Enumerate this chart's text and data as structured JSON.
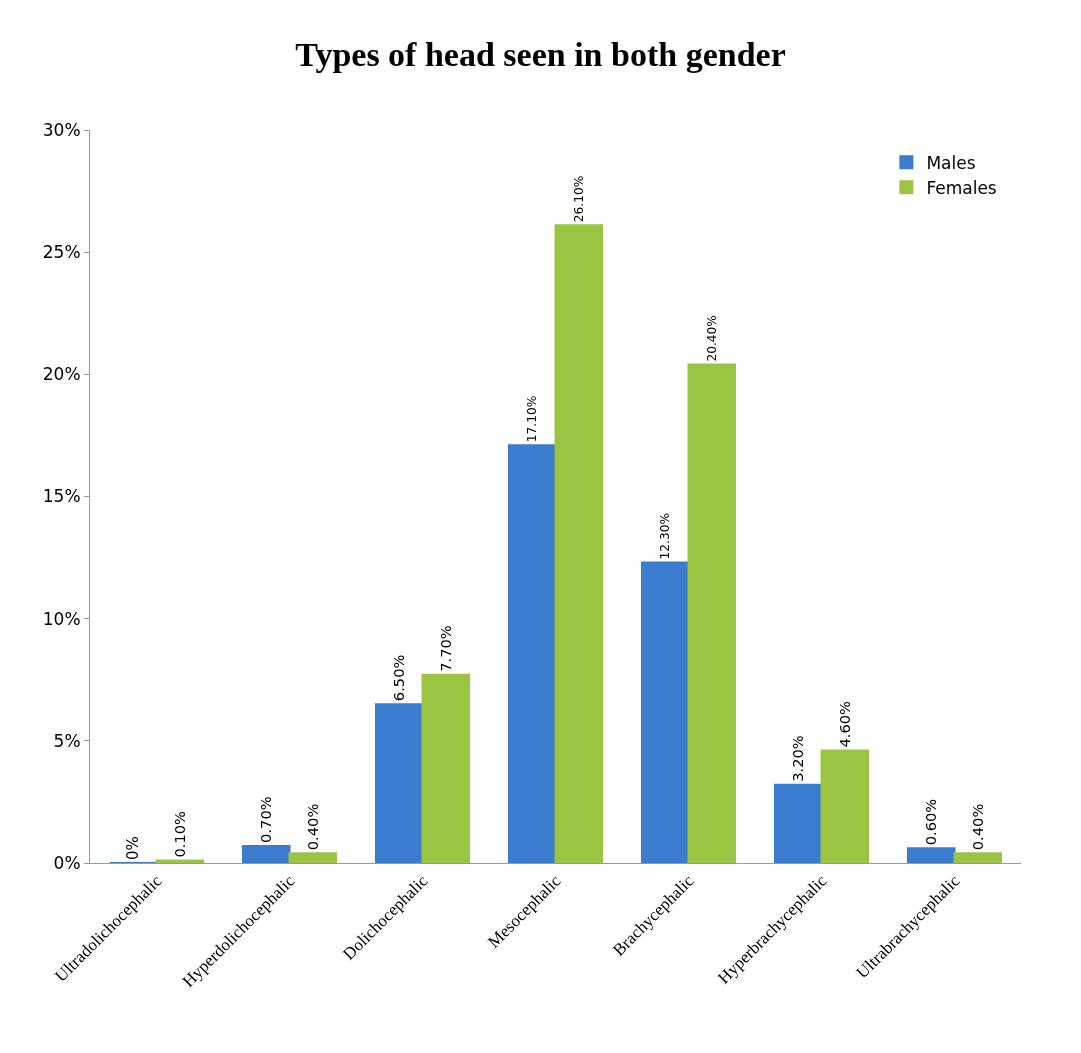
{
  "chart_data": {
    "type": "bar",
    "title": "Types of head seen in both gender",
    "categories": [
      "Ultradolichocephalic",
      "Hyperdolichocephalic",
      "Dolichocephalic",
      "Mesocephalic",
      "Brachycephalic",
      "Hyperbrachycephalic",
      "Ultrabrachycephalic"
    ],
    "series": [
      {
        "name": "Males",
        "color": "#3a7dd0",
        "values": [
          0,
          0.7,
          6.5,
          17.1,
          12.3,
          3.2,
          0.6
        ],
        "value_labels": [
          "0%",
          "0.70%",
          "6.50%",
          "17.10%",
          "12.30%",
          "3.20%",
          "0.60%"
        ]
      },
      {
        "name": "Females",
        "color": "#9bc443",
        "values": [
          0.1,
          0.4,
          7.7,
          26.1,
          20.4,
          4.6,
          0.4
        ],
        "value_labels": [
          "0.10%",
          "0.40%",
          "7.70%",
          "26.10%",
          "20.40%",
          "4.60%",
          "0.40%"
        ]
      }
    ],
    "ylim": [
      0,
      30
    ],
    "yticks": [
      {
        "value": 0,
        "label": "0%"
      },
      {
        "value": 5,
        "label": "5%"
      },
      {
        "value": 10,
        "label": "10%"
      },
      {
        "value": 15,
        "label": "15%"
      },
      {
        "value": 20,
        "label": "20%"
      },
      {
        "value": 25,
        "label": "25%"
      },
      {
        "value": 30,
        "label": "30%"
      }
    ],
    "legend": "top right"
  }
}
